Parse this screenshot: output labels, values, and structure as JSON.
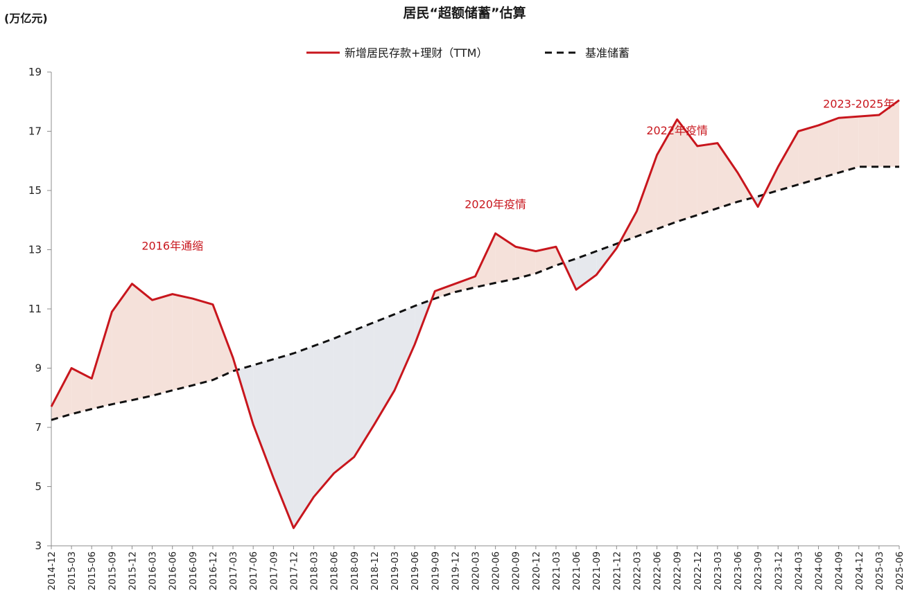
{
  "chart_data": {
    "type": "line",
    "title": "居民“超额储蓄”估算",
    "unit": "(万亿元)",
    "ylim": [
      3,
      19
    ],
    "yticks": [
      3,
      5,
      7,
      9,
      11,
      13,
      15,
      17,
      19
    ],
    "categories": [
      "2014-12",
      "2015-03",
      "2015-06",
      "2015-09",
      "2015-12",
      "2016-03",
      "2016-06",
      "2016-09",
      "2016-12",
      "2017-03",
      "2017-06",
      "2017-09",
      "2017-12",
      "2018-03",
      "2018-06",
      "2018-09",
      "2018-12",
      "2019-03",
      "2019-06",
      "2019-09",
      "2019-12",
      "2020-03",
      "2020-06",
      "2020-09",
      "2020-12",
      "2021-03",
      "2021-06",
      "2021-09",
      "2021-12",
      "2022-03",
      "2022-06",
      "2022-09",
      "2022-12",
      "2023-03",
      "2023-06",
      "2023-09",
      "2023-12",
      "2024-03",
      "2024-06",
      "2024-09",
      "2024-12",
      "2025-03",
      "2025-06"
    ],
    "series": [
      {
        "name": "新增居民存款+理财（TTM）",
        "style": "solid",
        "color": "#c8161d",
        "values": [
          7.7,
          9.0,
          8.65,
          10.9,
          11.85,
          11.3,
          11.5,
          11.35,
          11.15,
          9.35,
          7.1,
          5.3,
          3.6,
          4.65,
          5.45,
          6.0,
          7.1,
          8.25,
          9.8,
          11.6,
          11.85,
          12.1,
          13.55,
          13.1,
          12.95,
          13.1,
          11.65,
          12.15,
          13.05,
          14.3,
          16.2,
          17.4,
          16.5,
          16.6,
          15.6,
          14.45,
          15.8,
          17.0,
          17.2,
          17.45,
          17.5,
          17.55,
          18.05
        ]
      },
      {
        "name": "基准储蓄",
        "style": "dashed",
        "color": "#111111",
        "values": [
          7.25,
          7.45,
          7.62,
          7.78,
          7.92,
          8.07,
          8.25,
          8.42,
          8.6,
          8.9,
          9.1,
          9.3,
          9.5,
          9.75,
          10.0,
          10.28,
          10.55,
          10.82,
          11.1,
          11.35,
          11.57,
          11.73,
          11.88,
          12.02,
          12.2,
          12.47,
          12.7,
          12.95,
          13.2,
          13.45,
          13.7,
          13.95,
          14.17,
          14.4,
          14.62,
          14.8,
          15.0,
          15.2,
          15.4,
          15.6,
          15.8,
          15.8,
          15.8
        ]
      }
    ],
    "positive_fill_color": "#f5e1da",
    "negative_fill_color": "#e6e8ed",
    "legend_position": "top",
    "grid": false,
    "annotations": [
      {
        "text": "2016年通缩",
        "x": "2016-06",
        "y": 13.0
      },
      {
        "text": "2020年疫情",
        "x": "2020-06",
        "y": 14.4
      },
      {
        "text": "2022年疫情",
        "x": "2022-09",
        "y": 16.9
      },
      {
        "text": "2023-2025年",
        "x": "2024-12",
        "y": 17.8
      }
    ]
  }
}
